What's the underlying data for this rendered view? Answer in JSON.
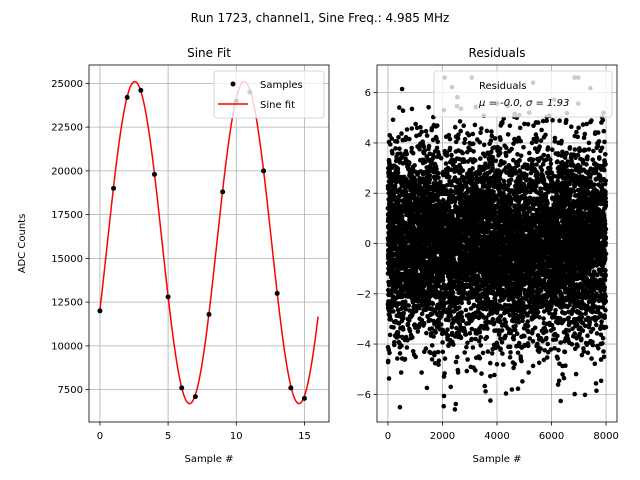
{
  "figure": {
    "suptitle": "Run 1723, channel1, Sine Freq.: 4.985 MHz"
  },
  "chart_data": [
    {
      "type": "line",
      "title": "Sine Fit",
      "xlabel": "Sample #",
      "ylabel": "ADC Counts",
      "xlim": [
        -0.8,
        16.8
      ],
      "ylim": [
        5650,
        26050
      ],
      "xticks": [
        0,
        5,
        10,
        15
      ],
      "yticks": [
        7500,
        10000,
        12500,
        15000,
        17500,
        20000,
        22500,
        25000
      ],
      "grid": true,
      "legend_position": "top-right",
      "series": [
        {
          "name": "Samples",
          "kind": "scatter",
          "color": "#000000",
          "x": [
            0,
            1,
            2,
            3,
            4,
            5,
            6,
            7,
            8,
            9,
            10,
            11,
            12,
            13,
            14,
            15
          ],
          "y": [
            12000,
            19000,
            24200,
            24600,
            19800,
            12800,
            7600,
            7100,
            11800,
            18800,
            24000,
            24500,
            20000,
            13000,
            7600,
            7000
          ]
        },
        {
          "name": "Sine fit",
          "kind": "line",
          "color": "#ff0000",
          "model": {
            "amplitude": 9200,
            "offset": 15900,
            "period": 8.03,
            "phase_x": 0.55
          },
          "x_range": [
            0,
            16
          ]
        }
      ]
    },
    {
      "type": "scatter",
      "title": "Residuals",
      "xlabel": "Sample #",
      "ylabel": "",
      "xlim": [
        -400,
        8400
      ],
      "ylim": [
        -7.1,
        7.1
      ],
      "xticks": [
        0,
        2000,
        4000,
        6000,
        8000
      ],
      "yticks": [
        -6,
        -4,
        -2,
        0,
        2,
        4,
        6
      ],
      "grid": true,
      "legend_position": "top-right",
      "series": [
        {
          "name": "Residuals",
          "color": "#000000",
          "distribution": {
            "type": "normal",
            "mean": -0.0,
            "sigma": 1.93,
            "n_points": 8000,
            "x_range": [
              0,
              8000
            ]
          }
        }
      ],
      "legend_stats": "μ = -0.0, σ = 1.93"
    }
  ]
}
